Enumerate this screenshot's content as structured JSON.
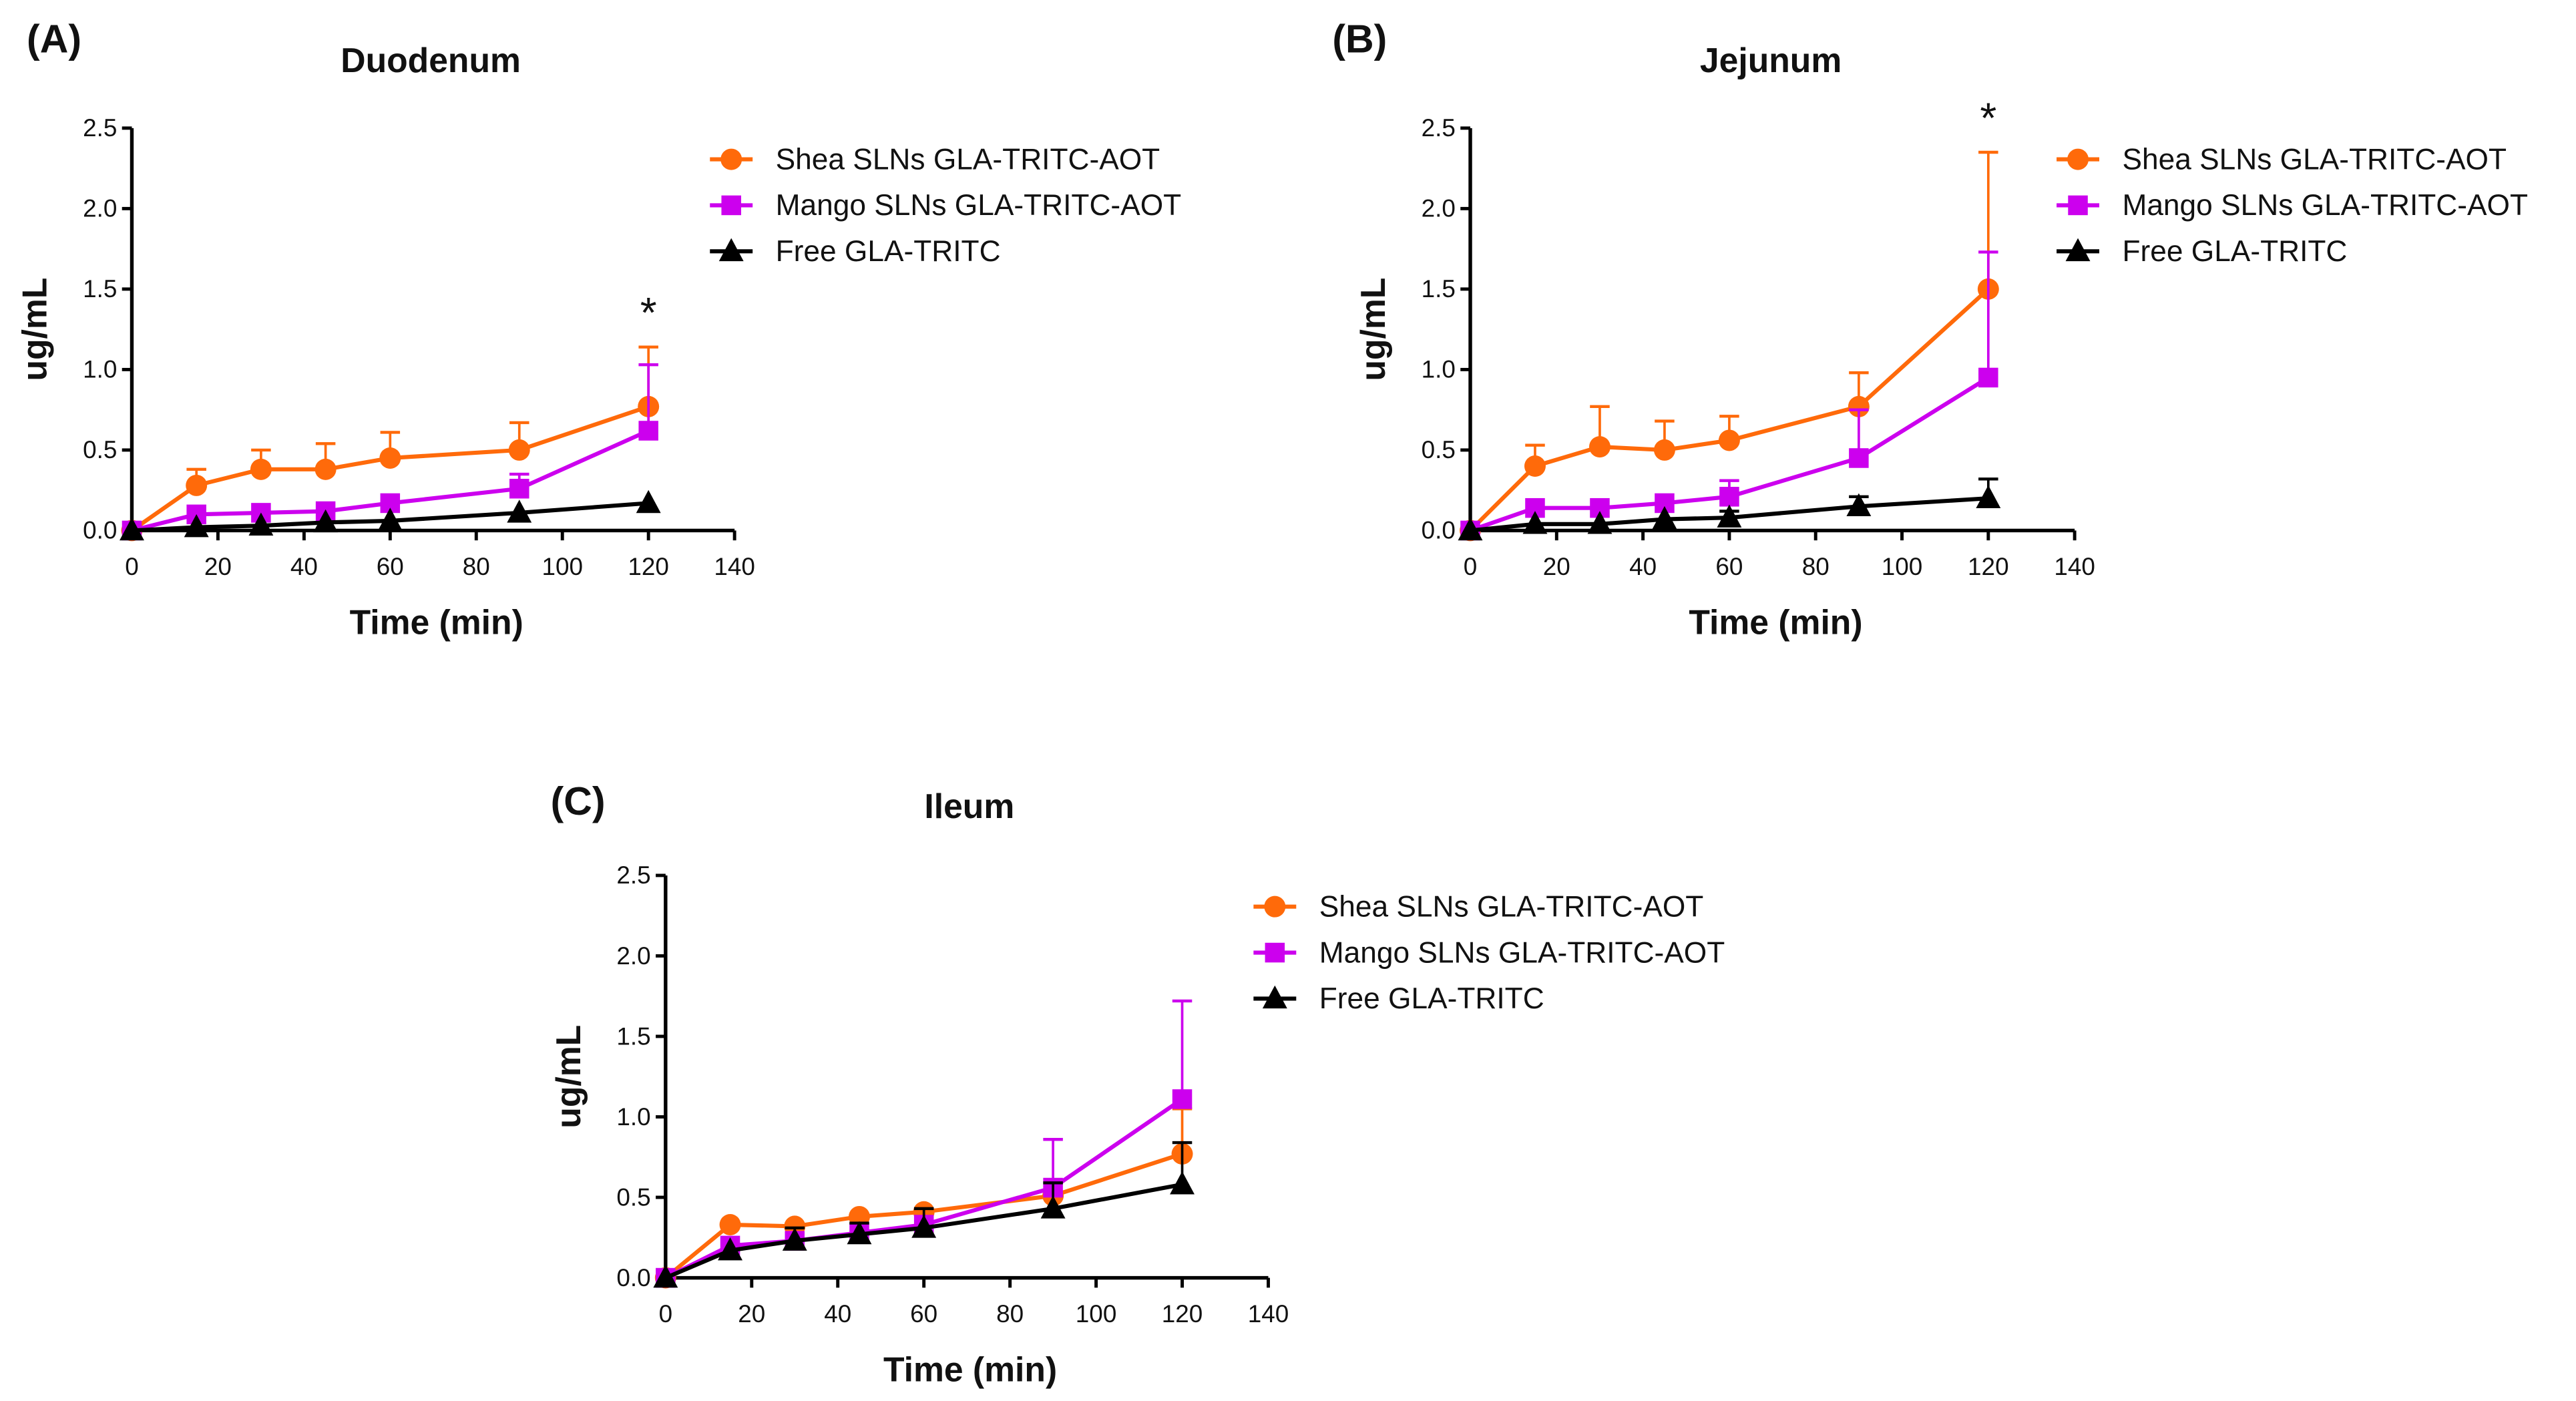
{
  "colors": {
    "shea": "#ff6a0a",
    "mango": "#cc00ee",
    "free": "#000000"
  },
  "legend": [
    "Shea SLNs GLA-TRITC-AOT",
    "Mango SLNs GLA-TRITC-AOT",
    "Free GLA-TRITC"
  ],
  "chart_data": [
    {
      "type": "line",
      "panel": "(A)",
      "title": "Duodenum",
      "xlabel": "Time (min)",
      "ylabel": "ug/mL",
      "xlim": [
        0,
        140
      ],
      "ylim": [
        0,
        2.5
      ],
      "xticks": [
        "0",
        "20",
        "40",
        "60",
        "80",
        "100",
        "120",
        "140"
      ],
      "yticks": [
        "0.0",
        "0.5",
        "1.0",
        "1.5",
        "2.0",
        "2.5"
      ],
      "x": [
        0,
        15,
        30,
        45,
        60,
        90,
        120
      ],
      "annotation": {
        "text": "*",
        "x": 120
      },
      "series": [
        {
          "name": "Shea SLNs GLA-TRITC-AOT",
          "marker": "circle",
          "values": [
            0,
            0.28,
            0.38,
            0.38,
            0.45,
            0.5,
            0.77
          ],
          "error": [
            0,
            0.1,
            0.12,
            0.16,
            0.16,
            0.17,
            0.37
          ]
        },
        {
          "name": "Mango SLNs GLA-TRITC-AOT",
          "marker": "square",
          "values": [
            0,
            0.1,
            0.11,
            0.12,
            0.17,
            0.26,
            0.62
          ],
          "error": [
            0,
            0,
            0,
            0,
            0,
            0.09,
            0.41
          ]
        },
        {
          "name": "Free GLA-TRITC",
          "marker": "triangle",
          "values": [
            0,
            0.02,
            0.03,
            0.05,
            0.06,
            0.11,
            0.17
          ],
          "error": [
            0,
            0,
            0,
            0,
            0,
            0,
            0
          ]
        }
      ]
    },
    {
      "type": "line",
      "panel": "(B)",
      "title": "Jejunum",
      "xlabel": "Time (min)",
      "ylabel": "ug/mL",
      "xlim": [
        0,
        140
      ],
      "ylim": [
        0,
        2.5
      ],
      "xticks": [
        "0",
        "20",
        "40",
        "60",
        "80",
        "100",
        "120",
        "140"
      ],
      "yticks": [
        "0.0",
        "0.5",
        "1.0",
        "1.5",
        "2.0",
        "2.5"
      ],
      "x": [
        0,
        15,
        30,
        45,
        60,
        90,
        120
      ],
      "annotation": {
        "text": "*",
        "x": 120
      },
      "series": [
        {
          "name": "Shea SLNs GLA-TRITC-AOT",
          "marker": "circle",
          "values": [
            0,
            0.4,
            0.52,
            0.5,
            0.56,
            0.77,
            1.5
          ],
          "error": [
            0,
            0.13,
            0.25,
            0.18,
            0.15,
            0.21,
            0.85
          ]
        },
        {
          "name": "Mango SLNs GLA-TRITC-AOT",
          "marker": "square",
          "values": [
            0,
            0.14,
            0.14,
            0.17,
            0.21,
            0.45,
            0.95
          ],
          "error": [
            0,
            0,
            0,
            0,
            0.1,
            0.3,
            0.78
          ]
        },
        {
          "name": "Free GLA-TRITC",
          "marker": "triangle",
          "values": [
            0,
            0.04,
            0.04,
            0.07,
            0.08,
            0.15,
            0.2
          ],
          "error": [
            0,
            0,
            0,
            0,
            0.04,
            0.06,
            0.12
          ]
        }
      ]
    },
    {
      "type": "line",
      "panel": "(C)",
      "title": "Ileum",
      "xlabel": "Time (min)",
      "ylabel": "ug/mL",
      "xlim": [
        0,
        140
      ],
      "ylim": [
        0,
        2.5
      ],
      "xticks": [
        "0",
        "20",
        "40",
        "60",
        "80",
        "100",
        "120",
        "140"
      ],
      "yticks": [
        "0.0",
        "0.5",
        "1.0",
        "1.5",
        "2.0",
        "2.5"
      ],
      "x": [
        0,
        15,
        30,
        45,
        60,
        90,
        120
      ],
      "series": [
        {
          "name": "Shea SLNs GLA-TRITC-AOT",
          "marker": "circle",
          "values": [
            0,
            0.33,
            0.32,
            0.38,
            0.41,
            0.51,
            0.77
          ],
          "error": [
            0,
            0,
            0,
            0,
            0,
            0,
            0.28
          ]
        },
        {
          "name": "Mango SLNs GLA-TRITC-AOT",
          "marker": "square",
          "values": [
            0,
            0.2,
            0.23,
            0.28,
            0.33,
            0.56,
            1.11
          ],
          "error": [
            0,
            0,
            0,
            0,
            0,
            0.3,
            0.61
          ]
        },
        {
          "name": "Free GLA-TRITC",
          "marker": "triangle",
          "values": [
            0,
            0.17,
            0.23,
            0.27,
            0.31,
            0.43,
            0.58
          ],
          "error": [
            0,
            0,
            0.08,
            0.07,
            0.12,
            0.16,
            0.26
          ]
        }
      ]
    }
  ]
}
